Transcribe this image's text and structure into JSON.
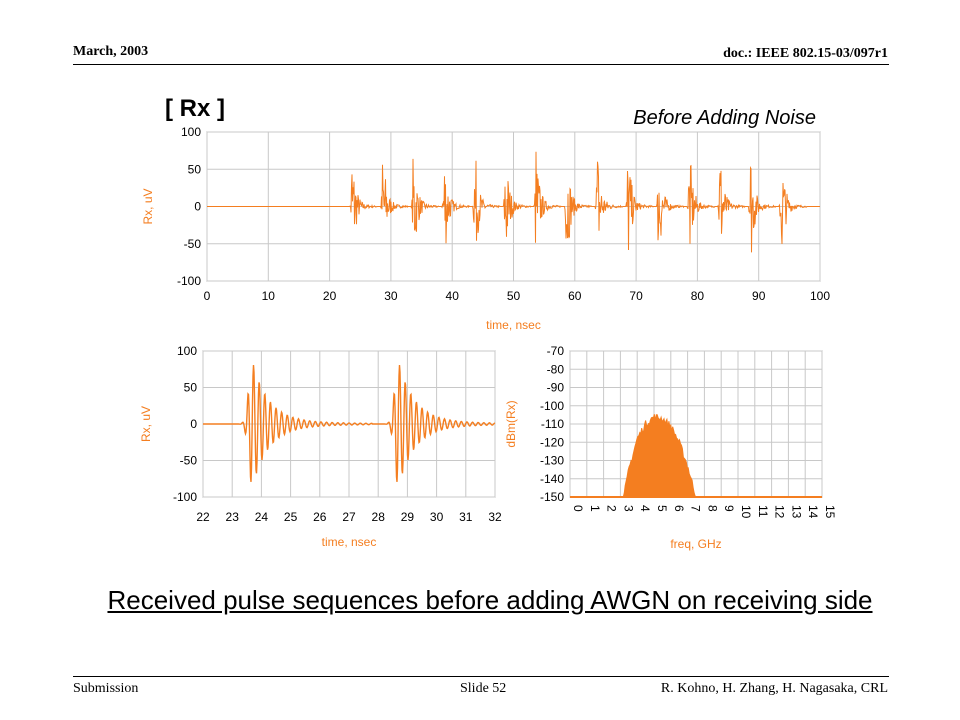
{
  "header": {
    "date": "March, 2003",
    "doc": "doc.: IEEE 802.15-03/097r1"
  },
  "footer": {
    "submission": "Submission",
    "slide": "Slide 52",
    "authors": "R. Kohno, H. Zhang, H. Nagasaka, CRL"
  },
  "figure": {
    "tag": "[ Rx ]",
    "note": "Before Adding Noise"
  },
  "caption": "Received pulse sequences before adding AWGN on receiving side",
  "colors": {
    "signal": "#f47e20",
    "axis_text": "#f47e20",
    "grid": "#c8c8c8"
  },
  "chart_data": [
    {
      "type": "line",
      "ylabel": "Rx, uV",
      "xlabel": "time, nsec",
      "xlim": [
        0,
        100
      ],
      "ylim": [
        -100,
        100
      ],
      "xticks": [
        0,
        10,
        20,
        30,
        40,
        50,
        60,
        70,
        80,
        90,
        100
      ],
      "yticks": [
        100,
        50,
        0,
        -50,
        -100
      ],
      "pulse_times": [
        23.3,
        28.3,
        33.3,
        38.3,
        43.3,
        48.3,
        53.3,
        58.3,
        63.3,
        68.3,
        73.3,
        78.3,
        83.3,
        88.3,
        93.3
      ],
      "peak_amplitude": 90,
      "grid": true
    },
    {
      "type": "line",
      "ylabel": "Rx, uV",
      "xlabel": "time, nsec",
      "xlim": [
        22,
        32
      ],
      "ylim": [
        -100,
        100
      ],
      "xticks": [
        22,
        23,
        24,
        25,
        26,
        27,
        28,
        29,
        30,
        31,
        32
      ],
      "yticks": [
        100,
        50,
        0,
        -50,
        -100
      ],
      "pulse_times": [
        23.3,
        28.3
      ],
      "peak_amplitude": 90,
      "grid": true
    },
    {
      "type": "area",
      "ylabel": "dBm(Rx)",
      "xlabel": "freq, GHz",
      "xlim": [
        0,
        15
      ],
      "ylim": [
        -150,
        -70
      ],
      "xticks": [
        0,
        1,
        2,
        3,
        4,
        5,
        6,
        7,
        8,
        9,
        10,
        11,
        12,
        13,
        14,
        15
      ],
      "yticks": [
        -70,
        -80,
        -90,
        -100,
        -110,
        -120,
        -130,
        -140,
        -150
      ],
      "spectrum": {
        "x": [
          0,
          3.2,
          3.5,
          4,
          4.5,
          5,
          5.5,
          6,
          6.5,
          7,
          7.5,
          15
        ],
        "y": [
          -150,
          -150,
          -135,
          -118,
          -110,
          -106,
          -107,
          -111,
          -120,
          -133,
          -150,
          -150
        ]
      },
      "grid": true
    }
  ]
}
